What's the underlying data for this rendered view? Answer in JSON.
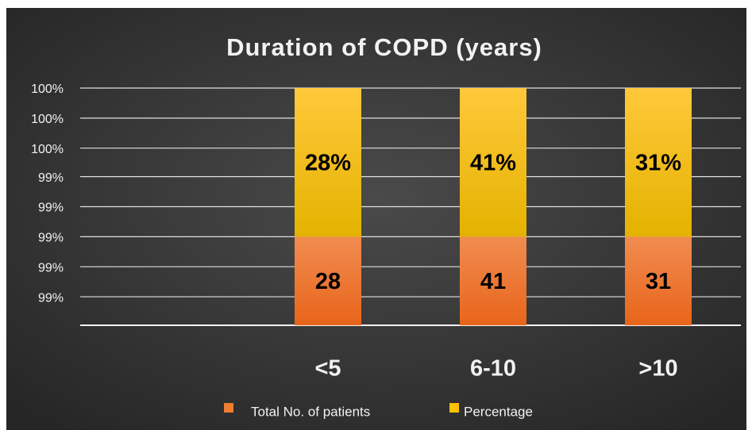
{
  "chart_data": {
    "type": "percent_stacked_bar",
    "title": "Duration of COPD (years)",
    "categories": [
      null,
      "<5",
      "6-10",
      ">10"
    ],
    "series": [
      {
        "name": "Total No. of patients",
        "color": "#ed7d31",
        "values": [
          null,
          28,
          41,
          31
        ]
      },
      {
        "name": "Percentage",
        "color": "#ffc000",
        "values": [
          null,
          0.28,
          0.41,
          0.31
        ],
        "value_labels": [
          null,
          "28%",
          "41%",
          "31%"
        ]
      }
    ],
    "ylim": [
      98.42,
      100
    ],
    "yticks": [
      {
        "value": 100,
        "label": "100%"
      },
      {
        "value": 99.8,
        "label": "100%"
      },
      {
        "value": 99.6,
        "label": "100%"
      },
      {
        "value": 99.41,
        "label": "99%"
      },
      {
        "value": 99.21,
        "label": "99%"
      },
      {
        "value": 99.01,
        "label": "99%"
      },
      {
        "value": 98.81,
        "label": "99%"
      },
      {
        "value": 98.61,
        "label": "99%"
      }
    ],
    "grid": true,
    "legend": "bottom"
  }
}
